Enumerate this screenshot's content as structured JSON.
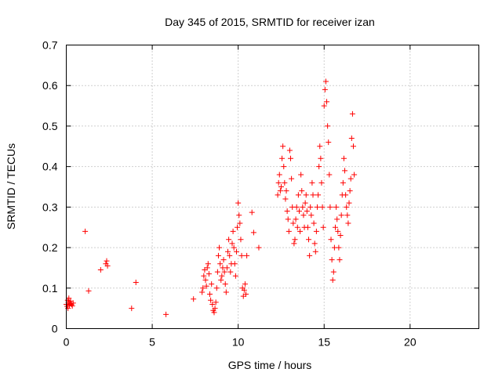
{
  "chart_data": {
    "type": "scatter",
    "title": "Day 345 of 2015, SRMTID for receiver izan",
    "xlabel": "GPS time / hours",
    "ylabel": "SRMTID / TECUs",
    "xlim": [
      0,
      24
    ],
    "ylim": [
      0,
      0.7
    ],
    "xticks": [
      0,
      5,
      10,
      15,
      20
    ],
    "xtick_labels": [
      "0",
      "5",
      "10",
      "15",
      "20"
    ],
    "yticks": [
      0,
      0.1,
      0.2,
      0.3,
      0.4,
      0.5,
      0.6,
      0.7
    ],
    "ytick_labels": [
      "0",
      "0.1",
      "0.2",
      "0.3",
      "0.4",
      "0.5",
      "0.6",
      "0.7"
    ],
    "grid": true,
    "marker": "+",
    "marker_color": "#ff0000",
    "series": [
      {
        "name": "SRMTID",
        "points": [
          [
            0.0,
            0.06
          ],
          [
            0.05,
            0.055
          ],
          [
            0.08,
            0.07
          ],
          [
            0.1,
            0.05
          ],
          [
            0.12,
            0.065
          ],
          [
            0.15,
            0.075
          ],
          [
            0.18,
            0.058
          ],
          [
            0.2,
            0.062
          ],
          [
            0.25,
            0.068
          ],
          [
            0.3,
            0.06
          ],
          [
            0.35,
            0.056
          ],
          [
            0.4,
            0.063
          ],
          [
            1.1,
            0.24
          ],
          [
            1.3,
            0.093
          ],
          [
            2.0,
            0.145
          ],
          [
            2.3,
            0.16
          ],
          [
            2.35,
            0.167
          ],
          [
            2.4,
            0.155
          ],
          [
            3.8,
            0.05
          ],
          [
            4.05,
            0.114
          ],
          [
            5.8,
            0.035
          ],
          [
            7.4,
            0.073
          ],
          [
            7.9,
            0.09
          ],
          [
            7.95,
            0.1
          ],
          [
            8.0,
            0.13
          ],
          [
            8.05,
            0.145
          ],
          [
            8.1,
            0.12
          ],
          [
            8.15,
            0.105
          ],
          [
            8.2,
            0.15
          ],
          [
            8.25,
            0.16
          ],
          [
            8.3,
            0.135
          ],
          [
            8.35,
            0.085
          ],
          [
            8.4,
            0.07
          ],
          [
            8.45,
            0.11
          ],
          [
            8.5,
            0.06
          ],
          [
            8.55,
            0.045
          ],
          [
            8.6,
            0.04
          ],
          [
            8.65,
            0.05
          ],
          [
            8.7,
            0.065
          ],
          [
            8.75,
            0.1
          ],
          [
            8.8,
            0.14
          ],
          [
            8.85,
            0.18
          ],
          [
            8.9,
            0.2
          ],
          [
            8.95,
            0.16
          ],
          [
            9.0,
            0.12
          ],
          [
            9.05,
            0.13
          ],
          [
            9.1,
            0.15
          ],
          [
            9.15,
            0.17
          ],
          [
            9.2,
            0.14
          ],
          [
            9.25,
            0.11
          ],
          [
            9.3,
            0.09
          ],
          [
            9.35,
            0.15
          ],
          [
            9.4,
            0.19
          ],
          [
            9.45,
            0.22
          ],
          [
            9.5,
            0.18
          ],
          [
            9.55,
            0.14
          ],
          [
            9.6,
            0.16
          ],
          [
            9.65,
            0.21
          ],
          [
            9.7,
            0.24
          ],
          [
            9.75,
            0.2
          ],
          [
            9.8,
            0.16
          ],
          [
            9.85,
            0.13
          ],
          [
            9.9,
            0.19
          ],
          [
            9.95,
            0.25
          ],
          [
            10.0,
            0.31
          ],
          [
            10.05,
            0.28
          ],
          [
            10.1,
            0.26
          ],
          [
            10.15,
            0.22
          ],
          [
            10.2,
            0.18
          ],
          [
            10.25,
            0.1
          ],
          [
            10.3,
            0.08
          ],
          [
            10.35,
            0.095
          ],
          [
            10.4,
            0.11
          ],
          [
            10.45,
            0.085
          ],
          [
            10.5,
            0.18
          ],
          [
            10.8,
            0.287
          ],
          [
            10.9,
            0.237
          ],
          [
            11.2,
            0.2
          ],
          [
            12.3,
            0.33
          ],
          [
            12.35,
            0.36
          ],
          [
            12.4,
            0.38
          ],
          [
            12.45,
            0.34
          ],
          [
            12.5,
            0.35
          ],
          [
            12.55,
            0.42
          ],
          [
            12.6,
            0.45
          ],
          [
            12.65,
            0.4
          ],
          [
            12.7,
            0.36
          ],
          [
            12.75,
            0.32
          ],
          [
            12.8,
            0.34
          ],
          [
            12.85,
            0.29
          ],
          [
            12.9,
            0.27
          ],
          [
            12.95,
            0.24
          ],
          [
            13.0,
            0.44
          ],
          [
            13.05,
            0.42
          ],
          [
            13.1,
            0.37
          ],
          [
            13.15,
            0.3
          ],
          [
            13.2,
            0.26
          ],
          [
            13.25,
            0.21
          ],
          [
            13.3,
            0.22
          ],
          [
            13.35,
            0.27
          ],
          [
            13.4,
            0.3
          ],
          [
            13.45,
            0.25
          ],
          [
            13.5,
            0.33
          ],
          [
            13.55,
            0.29
          ],
          [
            13.6,
            0.24
          ],
          [
            13.65,
            0.38
          ],
          [
            13.7,
            0.34
          ],
          [
            13.75,
            0.3
          ],
          [
            13.8,
            0.28
          ],
          [
            13.85,
            0.25
          ],
          [
            13.9,
            0.31
          ],
          [
            13.95,
            0.33
          ],
          [
            14.0,
            0.29
          ],
          [
            14.05,
            0.25
          ],
          [
            14.1,
            0.22
          ],
          [
            14.15,
            0.18
          ],
          [
            14.2,
            0.3
          ],
          [
            14.25,
            0.28
          ],
          [
            14.3,
            0.36
          ],
          [
            14.35,
            0.33
          ],
          [
            14.4,
            0.26
          ],
          [
            14.45,
            0.21
          ],
          [
            14.5,
            0.19
          ],
          [
            14.55,
            0.24
          ],
          [
            14.6,
            0.3
          ],
          [
            14.65,
            0.33
          ],
          [
            14.7,
            0.4
          ],
          [
            14.75,
            0.45
          ],
          [
            14.8,
            0.42
          ],
          [
            14.85,
            0.36
          ],
          [
            14.9,
            0.3
          ],
          [
            14.95,
            0.25
          ],
          [
            15.0,
            0.55
          ],
          [
            15.05,
            0.59
          ],
          [
            15.1,
            0.61
          ],
          [
            15.15,
            0.56
          ],
          [
            15.2,
            0.5
          ],
          [
            15.25,
            0.46
          ],
          [
            15.3,
            0.38
          ],
          [
            15.35,
            0.3
          ],
          [
            15.4,
            0.22
          ],
          [
            15.45,
            0.17
          ],
          [
            15.5,
            0.12
          ],
          [
            15.55,
            0.14
          ],
          [
            15.6,
            0.2
          ],
          [
            15.65,
            0.25
          ],
          [
            15.7,
            0.3
          ],
          [
            15.75,
            0.27
          ],
          [
            15.8,
            0.24
          ],
          [
            15.85,
            0.2
          ],
          [
            15.9,
            0.17
          ],
          [
            15.95,
            0.23
          ],
          [
            16.0,
            0.28
          ],
          [
            16.05,
            0.33
          ],
          [
            16.1,
            0.36
          ],
          [
            16.15,
            0.42
          ],
          [
            16.2,
            0.39
          ],
          [
            16.25,
            0.33
          ],
          [
            16.3,
            0.3
          ],
          [
            16.35,
            0.28
          ],
          [
            16.4,
            0.26
          ],
          [
            16.45,
            0.31
          ],
          [
            16.5,
            0.34
          ],
          [
            16.55,
            0.37
          ],
          [
            16.6,
            0.47
          ],
          [
            16.65,
            0.53
          ],
          [
            16.7,
            0.45
          ],
          [
            16.75,
            0.38
          ]
        ]
      }
    ]
  }
}
